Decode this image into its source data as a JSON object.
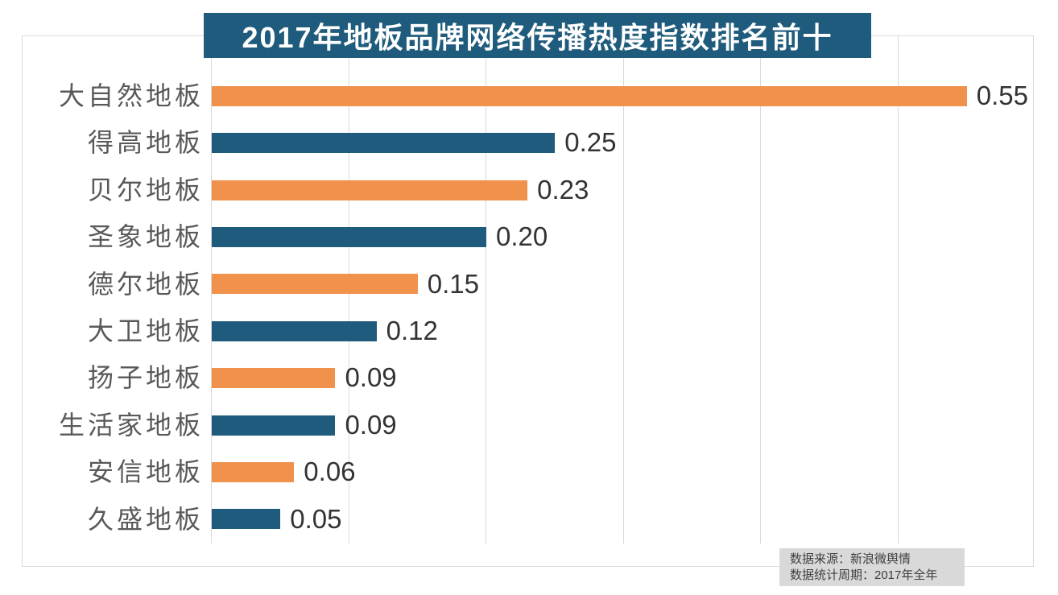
{
  "title": "2017年地板品牌网络传播热度指数排名前十",
  "source_note": {
    "line1": "数据来源：新浪微舆情",
    "line2": "数据统计周期：2017年全年"
  },
  "colors": {
    "banner_bg": "#1F5B7C",
    "banner_text": "#ffffff",
    "bar_orange": "#F0924C",
    "bar_blue": "#1F5B7C",
    "gridline": "#d9d9d9",
    "frame_border": "#d9d9d9",
    "category_text": "#595959",
    "value_text": "#333333",
    "note_bg": "#d9d9d9",
    "note_text": "#404040"
  },
  "chart_data": {
    "type": "bar",
    "orientation": "horizontal",
    "title": "2017年地板品牌网络传播热度指数排名前十",
    "categories": [
      "大自然地板",
      "得高地板",
      "贝尔地板",
      "圣象地板",
      "德尔地板",
      "大卫地板",
      "扬子地板",
      "生活家地板",
      "安信地板",
      "久盛地板"
    ],
    "values": [
      0.55,
      0.25,
      0.23,
      0.2,
      0.15,
      0.12,
      0.09,
      0.09,
      0.06,
      0.05
    ],
    "value_labels": [
      "0.55",
      "0.25",
      "0.23",
      "0.20",
      "0.15",
      "0.12",
      "0.09",
      "0.09",
      "0.06",
      "0.05"
    ],
    "xlabel": "",
    "ylabel": "",
    "xlim": [
      0,
      0.6
    ],
    "gridline_interval": 0.1,
    "grid": true,
    "legend": false,
    "bar_color_pattern": [
      "#F0924C",
      "#1F5B7C"
    ],
    "annotations": [
      "数据来源：新浪微舆情",
      "数据统计周期：2017年全年"
    ]
  }
}
